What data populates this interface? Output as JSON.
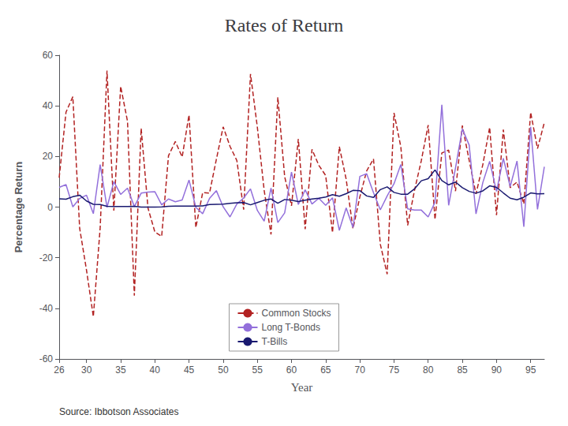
{
  "chart_data": {
    "type": "line",
    "title": "Rates of Return",
    "xlabel": "Year",
    "ylabel": "Percentage Return",
    "annotations": [
      "Source: Ibbotson Associates"
    ],
    "x": [
      26,
      27,
      28,
      29,
      30,
      31,
      32,
      33,
      34,
      35,
      36,
      37,
      38,
      39,
      40,
      41,
      42,
      43,
      44,
      45,
      46,
      47,
      48,
      49,
      50,
      51,
      52,
      53,
      54,
      55,
      56,
      57,
      58,
      59,
      60,
      61,
      62,
      63,
      64,
      65,
      66,
      67,
      68,
      69,
      70,
      71,
      72,
      73,
      74,
      75,
      76,
      77,
      78,
      79,
      80,
      81,
      82,
      83,
      84,
      85,
      86,
      87,
      88,
      89,
      90,
      91,
      92,
      93,
      94,
      95,
      96,
      97
    ],
    "series": [
      {
        "name": "Common Stocks",
        "color": "#b22222",
        "line_style": "dashed",
        "values": [
          11.6,
          37.5,
          43.6,
          -8.4,
          -24.9,
          -43.3,
          -8.2,
          53.9,
          -1.4,
          47.7,
          33.9,
          -35.0,
          31.1,
          -0.4,
          -9.8,
          -11.6,
          20.3,
          25.9,
          19.8,
          36.4,
          -8.1,
          5.7,
          5.5,
          18.8,
          31.7,
          24.0,
          18.4,
          -1.0,
          52.6,
          31.6,
          6.6,
          -10.8,
          43.4,
          12.0,
          0.5,
          26.9,
          -8.7,
          22.8,
          16.5,
          12.5,
          -10.1,
          23.9,
          11.0,
          -8.5,
          4.0,
          14.3,
          19.0,
          -14.7,
          -26.5,
          37.2,
          23.8,
          -7.2,
          6.6,
          18.4,
          32.4,
          -4.9,
          21.4,
          22.5,
          6.3,
          32.2,
          18.5,
          5.2,
          16.8,
          31.5,
          -3.2,
          30.6,
          7.7,
          9.9,
          1.3,
          37.4,
          23.1,
          33.4
        ]
      },
      {
        "name": "Long T-Bonds",
        "color": "#9370db",
        "line_style": "solid",
        "values": [
          7.8,
          8.9,
          0.1,
          3.4,
          4.7,
          -2.6,
          16.8,
          -0.1,
          10.0,
          5.0,
          7.5,
          0.2,
          5.5,
          5.9,
          6.1,
          0.9,
          3.2,
          2.1,
          2.8,
          10.7,
          -0.1,
          -2.6,
          3.4,
          6.5,
          0.1,
          -3.9,
          1.2,
          3.6,
          7.2,
          -1.3,
          -5.6,
          7.5,
          -6.1,
          -2.3,
          13.8,
          1.0,
          6.8,
          1.2,
          3.5,
          0.7,
          3.7,
          -9.2,
          -0.3,
          -8.1,
          12.1,
          13.2,
          5.7,
          -1.1,
          4.4,
          9.2,
          16.8,
          -0.7,
          -1.2,
          -1.2,
          -3.9,
          1.9,
          40.4,
          0.7,
          15.5,
          30.9,
          24.5,
          -2.7,
          9.7,
          18.1,
          6.2,
          19.3,
          8.1,
          18.2,
          -7.8,
          31.7,
          -0.9,
          15.9
        ]
      },
      {
        "name": "T-Bills",
        "color": "#191970",
        "line_style": "solid",
        "values": [
          3.3,
          3.1,
          4.1,
          4.7,
          2.4,
          1.1,
          1.0,
          0.3,
          0.2,
          0.2,
          0.2,
          0.3,
          0.0,
          0.0,
          0.0,
          0.1,
          0.3,
          0.4,
          0.4,
          0.4,
          0.4,
          0.5,
          1.0,
          1.1,
          1.2,
          1.5,
          1.7,
          1.8,
          0.9,
          1.8,
          2.7,
          3.2,
          1.5,
          3.0,
          2.7,
          2.2,
          2.7,
          3.2,
          3.5,
          4.0,
          4.9,
          4.3,
          5.3,
          6.6,
          6.5,
          4.4,
          3.8,
          6.9,
          8.0,
          5.8,
          5.1,
          5.1,
          7.2,
          10.4,
          11.2,
          14.7,
          10.5,
          8.8,
          9.9,
          7.7,
          6.2,
          5.5,
          6.4,
          8.4,
          7.8,
          5.6,
          3.5,
          2.9,
          3.9,
          5.6,
          5.2,
          5.3
        ]
      }
    ],
    "xlim": [
      26,
      97
    ],
    "xticks": [
      26,
      30,
      35,
      40,
      45,
      50,
      55,
      60,
      65,
      70,
      75,
      80,
      85,
      90,
      95
    ],
    "ylim": [
      -60,
      60
    ],
    "yticks": [
      -60,
      -40,
      -20,
      0,
      20,
      40,
      60
    ],
    "grid": false,
    "legend": "lower center"
  }
}
